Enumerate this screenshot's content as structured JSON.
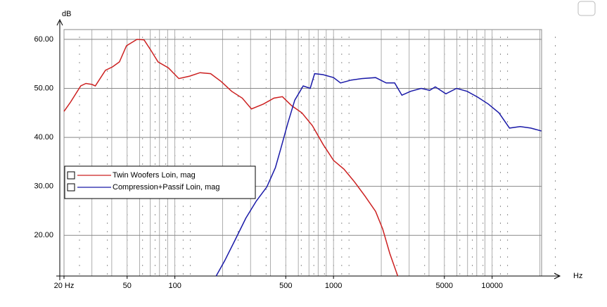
{
  "chart_data": {
    "type": "line",
    "log_x": true,
    "grid": true,
    "legend": "left",
    "ylabel": "dB",
    "xlabel": "Hz",
    "xlim": [
      20,
      20500
    ],
    "ylim": [
      11.7,
      62
    ],
    "xticks": [
      {
        "value": 20,
        "label": "20 Hz"
      },
      50,
      100,
      500,
      1000,
      5000,
      10000
    ],
    "yticks": [
      {
        "value": 20,
        "label": "20.00"
      },
      {
        "value": 30,
        "label": "30.00"
      },
      {
        "value": 40,
        "label": "40.00"
      },
      {
        "value": 50,
        "label": "50.00"
      },
      {
        "value": 60,
        "label": "60.00"
      }
    ],
    "series": [
      {
        "name": "Twin Woofers Loin, mag",
        "color": "#cc2020",
        "x": [
          20,
          22,
          25.5,
          27.5,
          30,
          31.5,
          36.5,
          40.5,
          44.7,
          49.5,
          57.7,
          63.9,
          70.8,
          78.3,
          91,
          106,
          124,
          144,
          168,
          196,
          228,
          266,
          304,
          361,
          421,
          476,
          543,
          632,
          736,
          858,
          1000,
          1165,
          1357,
          1581,
          1842,
          2043,
          2265,
          2540
        ],
        "values": [
          45.3,
          47.2,
          50.5,
          51,
          50.8,
          50.5,
          53.7,
          54.4,
          55.4,
          58.7,
          60,
          59.9,
          57.7,
          55.4,
          54.2,
          52,
          52.5,
          53.2,
          53,
          51.4,
          49.4,
          48,
          45.8,
          46.8,
          48,
          48.3,
          46.5,
          45,
          42.4,
          38.6,
          35.3,
          33.5,
          30.9,
          28,
          24.9,
          21.3,
          16.3,
          11.7
        ]
      },
      {
        "name": "Compression+Passif Loin, mag",
        "color": "#1a1aa8",
        "x": [
          182,
          206,
          240,
          280,
          326,
          380,
          430,
          466,
          515,
          570,
          644,
          713,
          760,
          858,
          1000,
          1108,
          1294,
          1505,
          1842,
          2146,
          2430,
          2698,
          3062,
          3573,
          4039,
          4383,
          5112,
          5963,
          6955,
          8113,
          9462,
          11040,
          12870,
          15010,
          17510,
          20430
        ],
        "values": [
          11.7,
          14.8,
          19.1,
          23.5,
          27,
          29.9,
          33.8,
          37.8,
          42.9,
          47.6,
          50.5,
          50,
          53,
          52.8,
          52.2,
          51.1,
          51.7,
          52,
          52.2,
          51.1,
          51.1,
          48.6,
          49.4,
          50,
          49.6,
          50.3,
          48.9,
          50,
          49.4,
          48.2,
          46.8,
          45,
          41.9,
          42.2,
          41.9,
          41.3
        ]
      }
    ]
  }
}
